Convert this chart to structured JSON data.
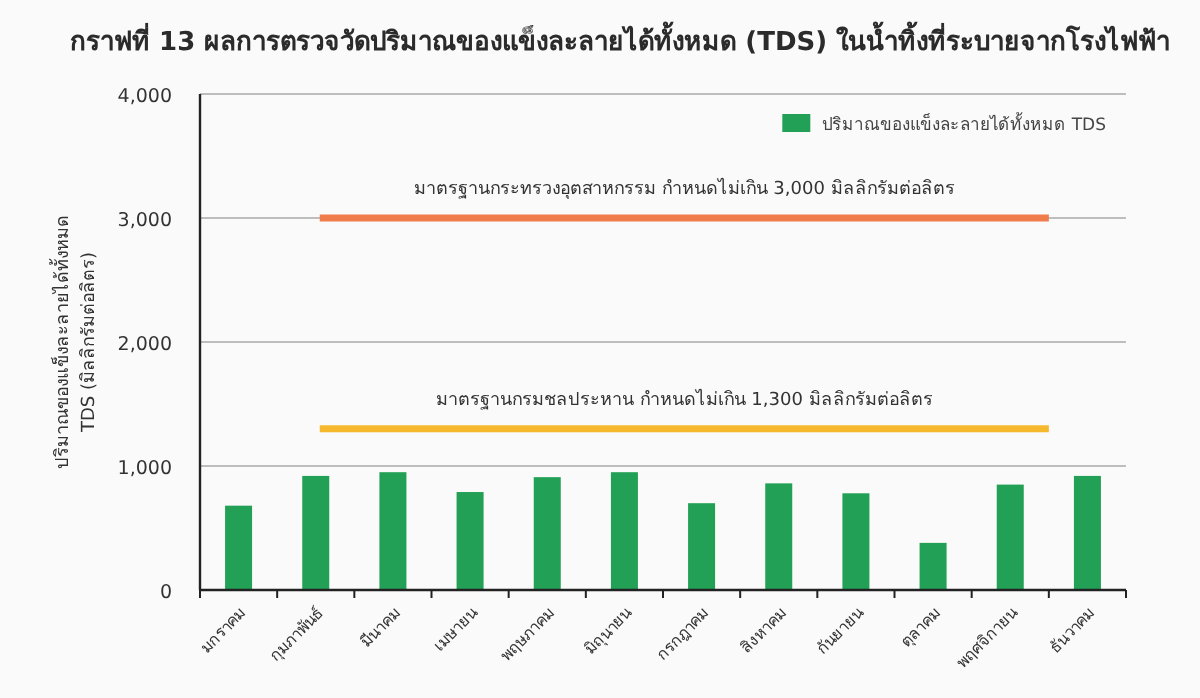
{
  "chart_data": {
    "type": "bar",
    "title": "กราฟที่ 13 ผลการตรวจวัดปริมาณของแข็งละลายได้ทั้งหมด (TDS) ในน้ำทิ้งที่ระบายจากโรงไฟฟ้า",
    "ylabel": "ปริมาณของแข็งละลายได้ทั้งหมด TDS (มิลลิกรัมต่อลิตร)",
    "categories": [
      "มกราคม",
      "กุมภาพันธ์",
      "มีนาคม",
      "เมษายน",
      "พฤษภาคม",
      "มิถุนายน",
      "กรกฎาคม",
      "สิงหาคม",
      "กันยายน",
      "ตุลาคม",
      "พฤศจิกายน",
      "ธันวาคม"
    ],
    "series": [
      {
        "name": "ปริมาณของแข็งละลายได้ทั้งหมด TDS",
        "color": "#22a055",
        "values": [
          680,
          920,
          950,
          790,
          910,
          950,
          700,
          860,
          780,
          380,
          850,
          920
        ]
      }
    ],
    "ylim": [
      0,
      4000
    ],
    "yticks": [
      {
        "value": 0,
        "label": "0"
      },
      {
        "value": 1000,
        "label": "1,000"
      },
      {
        "value": 2000,
        "label": "2,000"
      },
      {
        "value": 3000,
        "label": "3,000"
      },
      {
        "value": 4000,
        "label": "4,000"
      }
    ],
    "ref_lines": [
      {
        "axis": "y",
        "value": 3000,
        "label": "มาตรฐานกระทรวงอุตสาหกรรม กำหนดไม่เกิน 3,000 มิลลิกรัมต่อลิตร",
        "color": "#f07b4b"
      },
      {
        "axis": "y",
        "value": 1300,
        "label": "มาตรฐานกรมชลประหาน กำหนดไม่เกิน 1,300 มิลลิกรัมต่อลิตร",
        "color": "#f6b92e"
      }
    ],
    "grid": "y",
    "legend": "top right"
  }
}
